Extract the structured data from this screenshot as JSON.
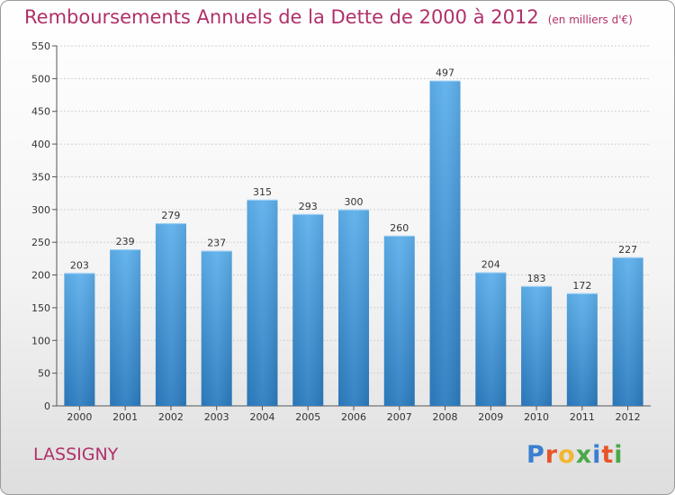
{
  "title": "Remboursements Annuels de la Dette de 2000 à 2012",
  "unit_note": "(en milliers d'€)",
  "city": "LASSIGNY",
  "logo": {
    "text": "Proxiti",
    "colors": [
      "#3a7fd1",
      "#e8542a",
      "#f2b632",
      "#4aa84a",
      "#3a7fd1",
      "#e8542a",
      "#4aa84a"
    ]
  },
  "colors": {
    "title": "#b0306a",
    "bar_top": "#5eb0ec",
    "bar_bottom": "#2c7cc0",
    "grid": "#cfcfcf"
  },
  "chart_data": {
    "type": "bar",
    "categories": [
      "2000",
      "2001",
      "2002",
      "2003",
      "2004",
      "2005",
      "2006",
      "2007",
      "2008",
      "2009",
      "2010",
      "2011",
      "2012"
    ],
    "values": [
      203,
      239,
      279,
      237,
      315,
      293,
      300,
      260,
      497,
      204,
      183,
      172,
      227
    ],
    "yticks": [
      0,
      50,
      100,
      150,
      200,
      250,
      300,
      350,
      400,
      450,
      500,
      550
    ],
    "ylim": [
      0,
      550
    ],
    "grid": true,
    "data_labels": true
  }
}
